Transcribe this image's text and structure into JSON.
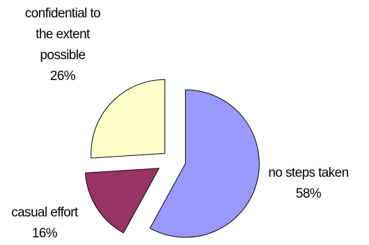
{
  "chart_data": {
    "type": "pie",
    "exploded": true,
    "slices": [
      {
        "label_lines": [
          "no steps taken"
        ],
        "value": 58,
        "value_label": "58%",
        "color": "#9999FF"
      },
      {
        "label_lines": [
          "casual effort"
        ],
        "value": 16,
        "value_label": "16%",
        "color": "#993366"
      },
      {
        "label_lines": [
          "confidential to",
          "the extent",
          "possible"
        ],
        "value": 26,
        "value_label": "26%",
        "color": "#FFFFCC"
      }
    ],
    "start_angle_deg": 0,
    "direction": "clockwise",
    "slice_outline_color": "#000000"
  }
}
